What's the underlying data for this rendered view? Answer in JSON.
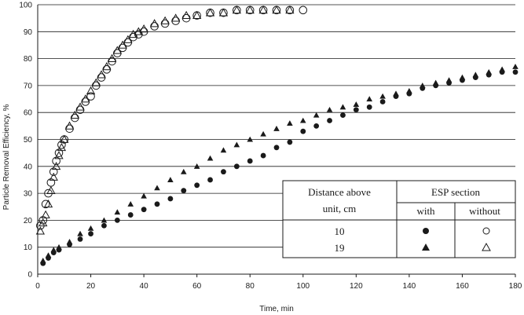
{
  "chart_data": {
    "type": "scatter",
    "title": "",
    "xlabel": "Time, min",
    "ylabel": "Particle Removal Efficiency, %",
    "xlim": [
      0,
      180
    ],
    "ylim": [
      0,
      100
    ],
    "x_ticks": [
      "0",
      "20",
      "40",
      "60",
      "80",
      "100",
      "120",
      "140",
      "160",
      "180"
    ],
    "y_ticks": [
      "0",
      "10",
      "20",
      "30",
      "40",
      "50",
      "60",
      "70",
      "80",
      "90",
      "100"
    ],
    "grid": "horizontal",
    "legend": {
      "placement": "lower-right",
      "row_header": "Distance above unit, cm",
      "row_header_lines": [
        "Distance above",
        "unit, cm"
      ],
      "column_group": "ESP section",
      "columns": [
        "with",
        "without"
      ],
      "rows": [
        "10",
        "19"
      ]
    },
    "series": [
      {
        "distance": "10",
        "esp": "with",
        "marker": "filled-circle",
        "x": [
          2,
          4,
          6,
          8,
          12,
          16,
          20,
          25,
          30,
          35,
          40,
          45,
          50,
          55,
          60,
          65,
          70,
          75,
          80,
          85,
          90,
          95,
          100,
          105,
          110,
          115,
          120,
          125,
          130,
          135,
          140,
          145,
          150,
          155,
          160,
          165,
          170,
          175,
          180
        ],
        "y": [
          4,
          6,
          8,
          9,
          11,
          13,
          15,
          18,
          20,
          22,
          24,
          26,
          28,
          31,
          33,
          35,
          38,
          40,
          42,
          44,
          47,
          49,
          53,
          55,
          57,
          59,
          61,
          62,
          64,
          66,
          67,
          69,
          70,
          71,
          72,
          73,
          74,
          75,
          75
        ]
      },
      {
        "distance": "10",
        "esp": "without",
        "marker": "open-circle",
        "x": [
          1,
          2,
          3,
          4,
          5,
          6,
          7,
          8,
          9,
          10,
          12,
          14,
          16,
          18,
          20,
          22,
          24,
          26,
          28,
          30,
          32,
          34,
          36,
          38,
          40,
          44,
          48,
          52,
          56,
          60,
          65,
          70,
          75,
          80,
          85,
          90,
          95,
          100
        ],
        "y": [
          18,
          20,
          26,
          30,
          34,
          38,
          42,
          45,
          48,
          50,
          54,
          58,
          61,
          64,
          66,
          70,
          73,
          76,
          79,
          82,
          84,
          86,
          88,
          89,
          90,
          92,
          93,
          94,
          95,
          96,
          97,
          97,
          98,
          98,
          98,
          98,
          98,
          98
        ]
      },
      {
        "distance": "19",
        "esp": "with",
        "marker": "filled-triangle",
        "x": [
          2,
          4,
          6,
          8,
          12,
          16,
          20,
          25,
          30,
          35,
          40,
          45,
          50,
          55,
          60,
          65,
          70,
          75,
          80,
          85,
          90,
          95,
          100,
          105,
          110,
          115,
          120,
          125,
          130,
          135,
          140,
          145,
          150,
          155,
          160,
          165,
          170,
          175,
          180
        ],
        "y": [
          5,
          7,
          9,
          10,
          12,
          15,
          17,
          20,
          23,
          26,
          29,
          32,
          35,
          38,
          40,
          43,
          46,
          48,
          50,
          52,
          54,
          56,
          57,
          59,
          61,
          62,
          63,
          65,
          66,
          67,
          68,
          70,
          71,
          72,
          73,
          74,
          75,
          76,
          77
        ]
      },
      {
        "distance": "19",
        "esp": "without",
        "marker": "open-triangle",
        "x": [
          1,
          2,
          3,
          4,
          5,
          6,
          7,
          8,
          9,
          10,
          12,
          14,
          16,
          18,
          20,
          22,
          24,
          26,
          28,
          30,
          32,
          34,
          36,
          38,
          40,
          44,
          48,
          52,
          56,
          60,
          65,
          70,
          75,
          80,
          85,
          90,
          95
        ],
        "y": [
          16,
          19,
          22,
          26,
          31,
          36,
          40,
          44,
          47,
          50,
          55,
          59,
          62,
          65,
          68,
          71,
          74,
          77,
          80,
          83,
          85,
          87,
          89,
          90,
          91,
          93,
          94,
          95,
          96,
          96,
          97,
          97,
          98,
          98,
          98,
          98,
          98
        ]
      }
    ]
  }
}
